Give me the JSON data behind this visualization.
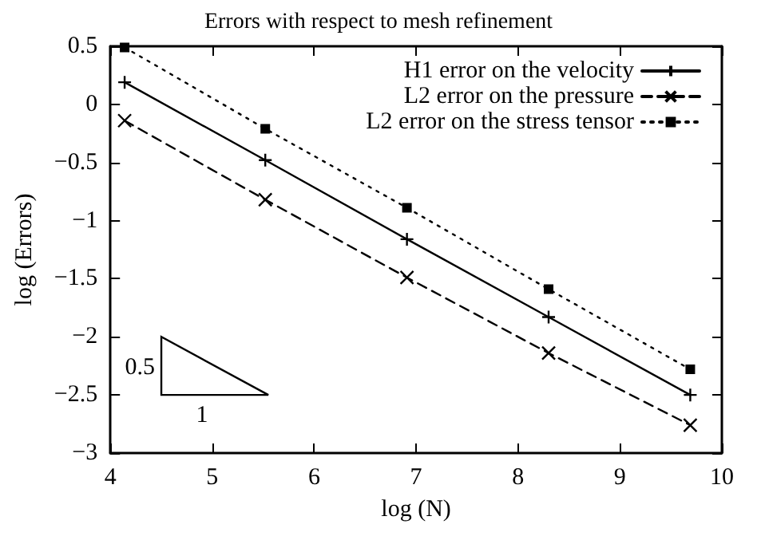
{
  "chart_data": {
    "type": "line",
    "title": "Errors with respect to mesh refinement",
    "xlabel": "log (N)",
    "ylabel": "log (Errors)",
    "x": [
      4.14,
      5.52,
      6.91,
      8.3,
      9.69
    ],
    "series": [
      {
        "name": "H1 error on the velocity",
        "color": "#000000",
        "marker": "cross",
        "line_style": "solid",
        "values": [
          0.19,
          -0.48,
          -1.16,
          -1.83,
          -2.5
        ]
      },
      {
        "name": "L2 error on the pressure",
        "color": "#000000",
        "marker": "cross-diagonal",
        "line_style": "dashed",
        "values": [
          -0.14,
          -0.82,
          -1.49,
          -2.14,
          -2.76
        ]
      },
      {
        "name": "L2 error on the stress tensor",
        "color": "#000000",
        "marker": "square",
        "line_style": "dotted",
        "values": [
          0.49,
          -0.21,
          -0.89,
          -1.59,
          -2.28
        ]
      }
    ],
    "xlim": [
      4,
      10
    ],
    "xticks": [
      4,
      5,
      6,
      7,
      8,
      9,
      10
    ],
    "ylim": [
      -3,
      0.5
    ],
    "yticks": [
      -3,
      -2.5,
      -2,
      -1.5,
      -1,
      -0.5,
      0,
      0.5
    ],
    "grid": false,
    "legend": "top right",
    "annotations": [
      "0.5",
      "1"
    ]
  }
}
